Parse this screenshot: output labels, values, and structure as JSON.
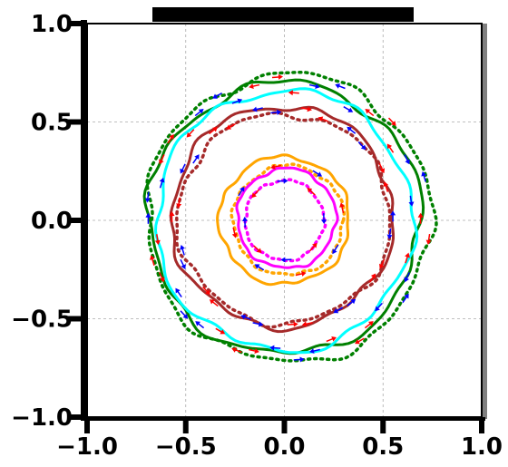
{
  "chart_data": {
    "type": "line",
    "title": "",
    "xlabel": "",
    "ylabel": "",
    "xlim": [
      -1.0,
      1.0
    ],
    "ylim": [
      -1.0,
      1.0
    ],
    "xticks": [
      -1.0,
      -0.5,
      0.0,
      0.5,
      1.0
    ],
    "yticks": [
      -1.0,
      -0.5,
      0.0,
      0.5,
      1.0
    ],
    "xtick_labels": [
      "−1.0",
      "−0.5",
      "0.0",
      "0.5",
      "1.0"
    ],
    "ytick_labels": [
      "−1.0",
      "−0.5",
      "0.0",
      "0.5",
      "1.0"
    ],
    "grid": true,
    "legend": "none",
    "series": [
      {
        "color": "#008000",
        "style": "solid",
        "cx": 0.0,
        "cy": 0.01,
        "r": 0.69
      },
      {
        "color": "#008000",
        "style": "dotted",
        "cx": 0.02,
        "cy": 0.01,
        "r": 0.72
      },
      {
        "color": "#00ffff",
        "style": "solid",
        "cx": 0.0,
        "cy": 0.0,
        "r": 0.65
      },
      {
        "color": "#a52a2a",
        "style": "solid",
        "cx": -0.01,
        "cy": 0.02,
        "r": 0.56
      },
      {
        "color": "#a52a2a",
        "style": "dotted",
        "cx": 0.0,
        "cy": 0.01,
        "r": 0.54
      },
      {
        "color": "#ffa500",
        "style": "solid",
        "cx": 0.0,
        "cy": 0.0,
        "r": 0.33
      },
      {
        "color": "#ffa500",
        "style": "dotted",
        "cx": 0.02,
        "cy": 0.0,
        "r": 0.28
      },
      {
        "color": "#ff00ff",
        "style": "solid",
        "cx": 0.01,
        "cy": 0.01,
        "r": 0.25
      },
      {
        "color": "#ff00ff",
        "style": "dotted",
        "cx": 0.0,
        "cy": 0.0,
        "r": 0.2
      }
    ],
    "arrow_colors": [
      "#ff0000",
      "#0000ff"
    ]
  }
}
